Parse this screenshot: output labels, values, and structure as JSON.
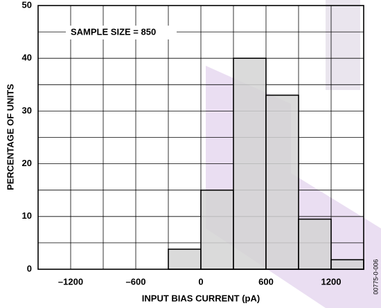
{
  "chart_data": {
    "type": "histogram",
    "annotation": "SAMPLE SIZE = 850",
    "xlabel": "INPUT BIAS CURRENT (pA)",
    "ylabel": "PERCENTAGE OF UNITS",
    "side_note": "00775-0-006",
    "bins": [
      -300,
      0,
      300,
      600,
      900,
      1200,
      1500
    ],
    "values": [
      3.8,
      15,
      40,
      33,
      9.5,
      1.8
    ],
    "color": "#d4d4d4",
    "xlim": [
      -1500,
      1500
    ],
    "ylim": [
      0,
      50
    ],
    "xticks": [
      {
        "value": -1200,
        "label": "–1200"
      },
      {
        "value": -600,
        "label": "–600"
      },
      0,
      600,
      1200
    ],
    "yticks": [
      0,
      10,
      20,
      30,
      40,
      50
    ],
    "minor_xgrid": [
      -900,
      -300,
      300,
      900
    ],
    "minor_ygrid": [
      5,
      15,
      25,
      35,
      45
    ],
    "grid": true
  }
}
